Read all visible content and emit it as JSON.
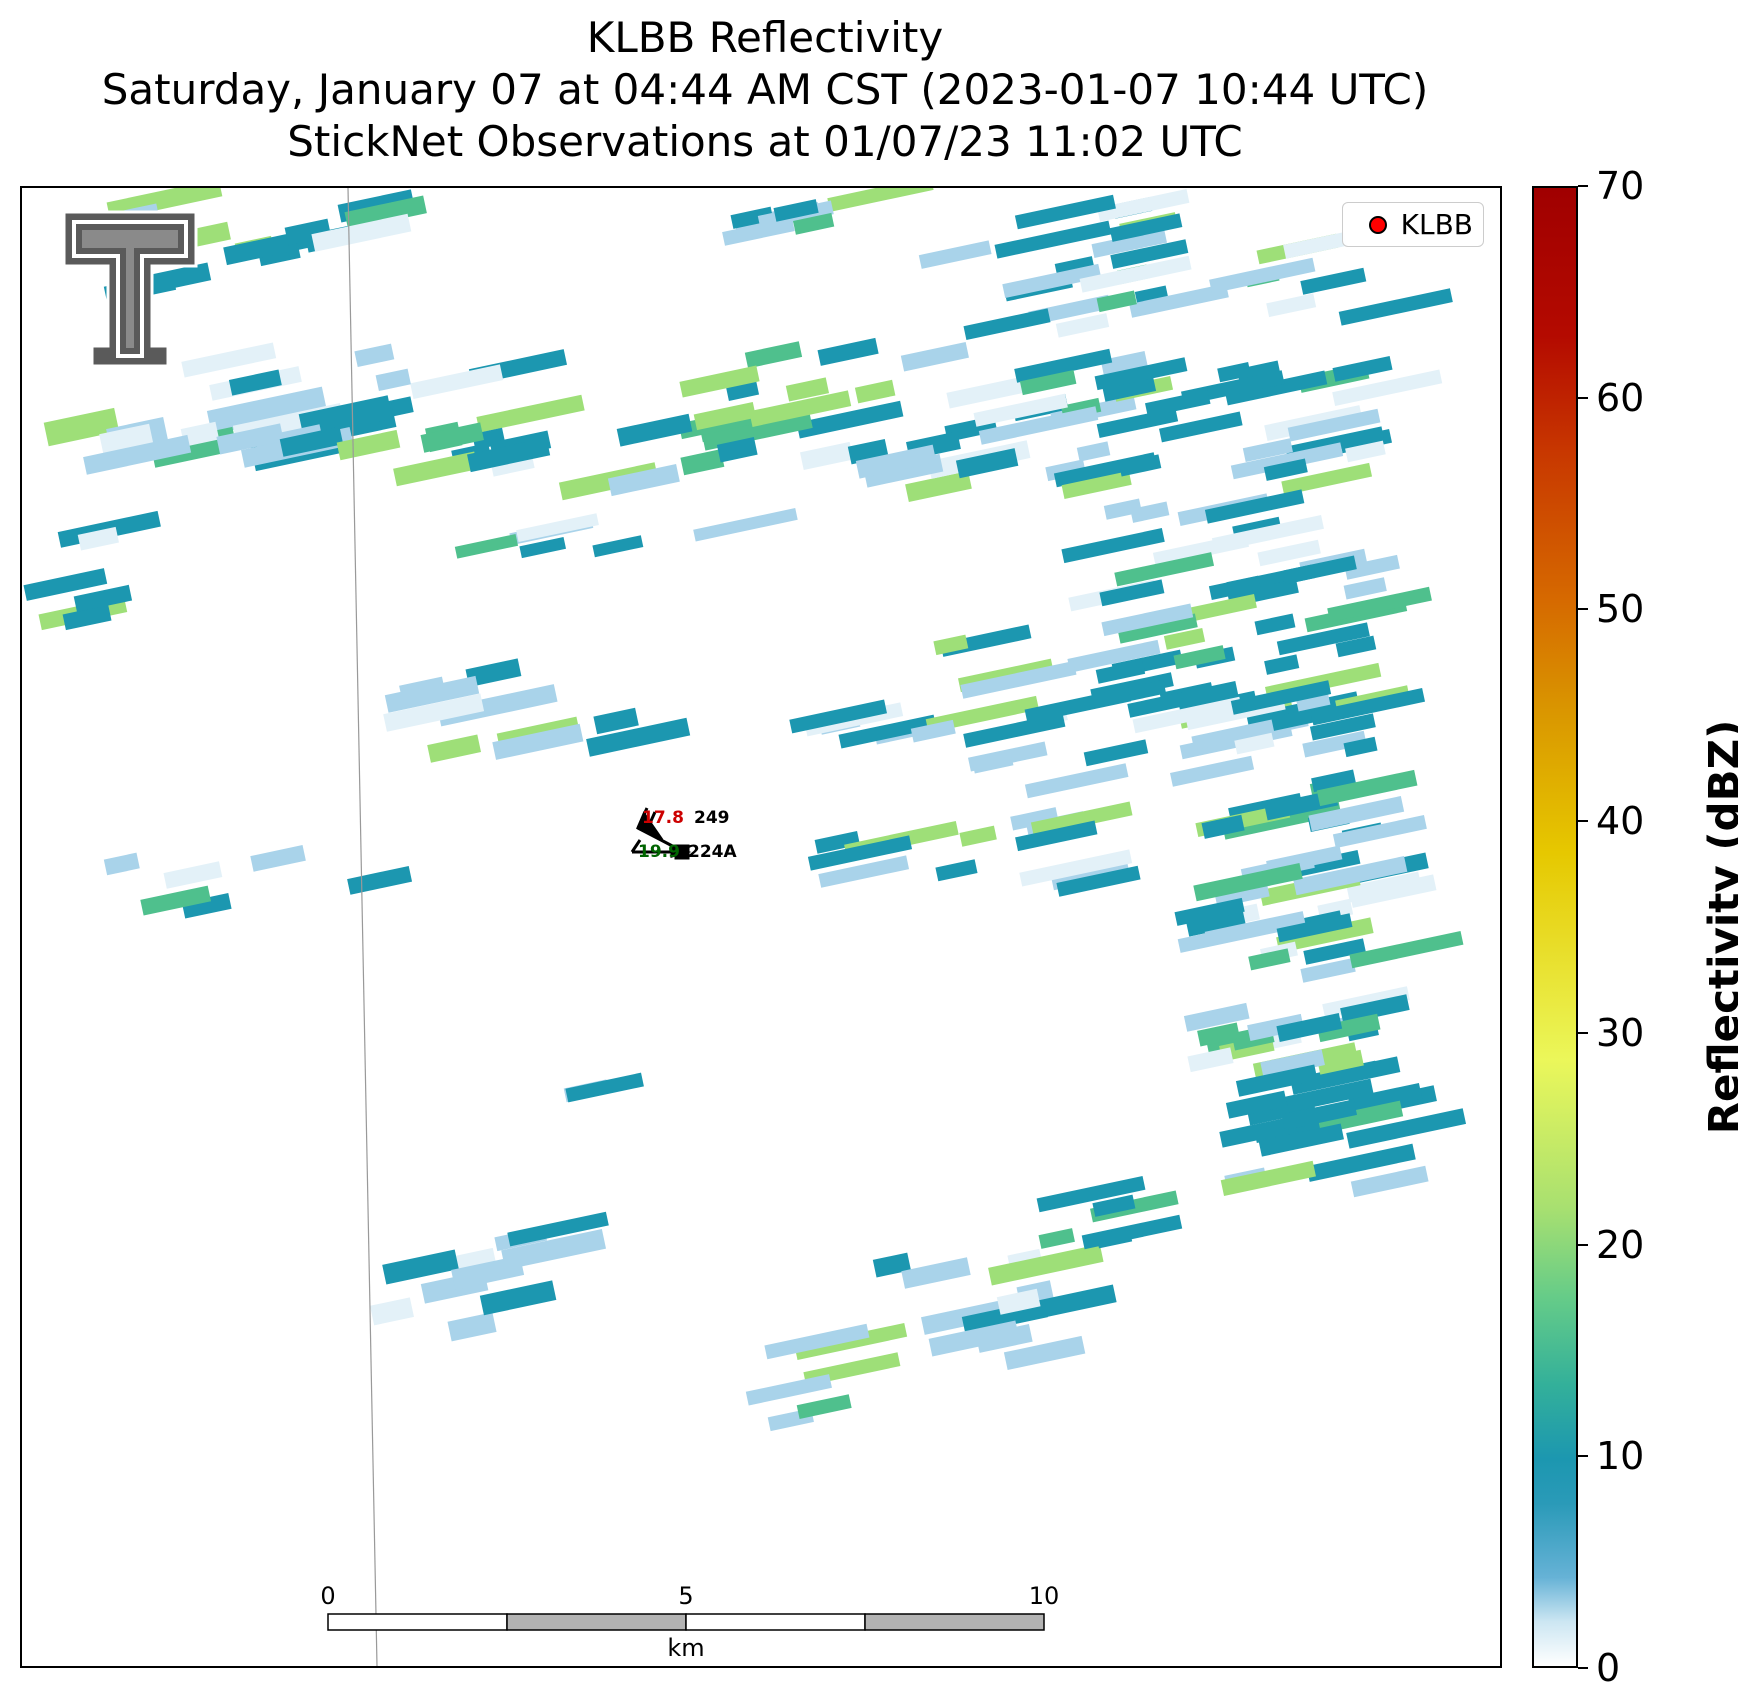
{
  "title": {
    "line1": "KLBB Reflectivity",
    "line2": "Saturday, January 07 at 04:44 AM CST (2023-01-07 10:44 UTC)",
    "line3": "StickNet Observations at 01/07/23 11:02 UTC"
  },
  "legend": {
    "label": "KLBB",
    "marker_color": "#ff0000"
  },
  "colorbar": {
    "label": "Reflectivity (dBZ)",
    "ticks": [
      "0",
      "10",
      "20",
      "30",
      "40",
      "50",
      "60",
      "70"
    ],
    "range": [
      0,
      70
    ]
  },
  "scale_bar": {
    "ticks": [
      "0",
      "5",
      "10"
    ],
    "unit": "km"
  },
  "stations": [
    {
      "id": "249",
      "temperature": "17.8",
      "temp_color": "#cc0000"
    },
    {
      "id": "224A",
      "dewpoint": "19.9",
      "dew_color": "#006400"
    }
  ],
  "logo": {
    "icon": "texas-tech-double-t-logo"
  },
  "palette": {
    "light": "#a9d3ea",
    "teal": "#1c97b0",
    "green": "#4fc08d",
    "lime": "#9edf78",
    "pale": "#e3f1f8"
  }
}
